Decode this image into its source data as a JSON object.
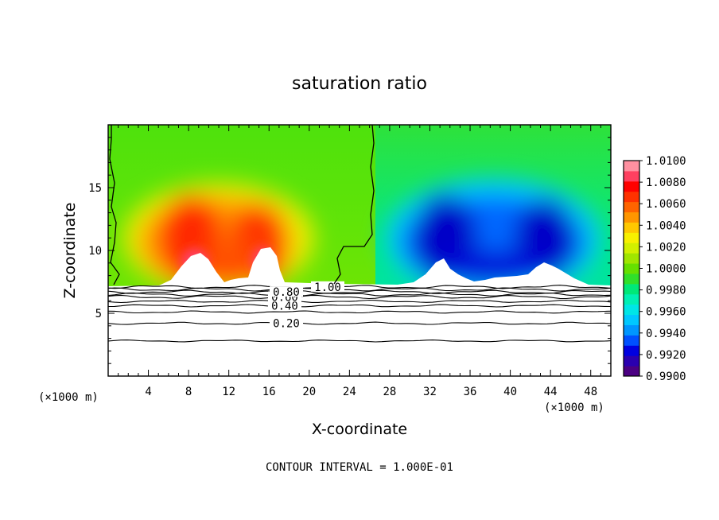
{
  "chart_data": {
    "type": "heatmap",
    "title": "saturation ratio",
    "xlabel": "X-coordinate",
    "ylabel": "Z-coordinate",
    "x_unit": "(×1000 m)",
    "x_unit_right": "(×1000 m)",
    "xlim": [
      0,
      50
    ],
    "ylim": [
      0,
      20
    ],
    "xticks": [
      4,
      8,
      12,
      16,
      20,
      24,
      28,
      32,
      36,
      40,
      44,
      48
    ],
    "xtick_labels": [
      "4",
      "8",
      "12",
      "16",
      "20",
      "24",
      "28",
      "32",
      "36",
      "40",
      "44",
      "48"
    ],
    "yticks": [
      5,
      10,
      15
    ],
    "ytick_labels": [
      "5",
      "10",
      "15"
    ],
    "colorbar": {
      "min": 0.99,
      "max": 1.01,
      "tick_labels": [
        "1.0100",
        "1.0080",
        "1.0060",
        "1.0040",
        "1.0020",
        "1.0000",
        "0.9980",
        "0.9960",
        "0.9940",
        "0.9920",
        "0.9900"
      ],
      "colors": [
        "#4b0082",
        "#2a00b0",
        "#0000e0",
        "#0050ff",
        "#0096ff",
        "#00c8ff",
        "#00e6e6",
        "#00f0b4",
        "#00e878",
        "#30e02a",
        "#66e000",
        "#a0e600",
        "#d2f000",
        "#f8f000",
        "#ffc800",
        "#ff9600",
        "#ff6400",
        "#ff3200",
        "#ff0000",
        "#ff4060",
        "#ff90a0"
      ]
    },
    "warm_cells": [
      {
        "x": 9.5,
        "z": 11.8,
        "value": 1.0068
      },
      {
        "x": 15.0,
        "z": 11.8,
        "value": 1.0052
      },
      {
        "x": 12.0,
        "z": 9.0,
        "value": 1.0045
      },
      {
        "x": 20.0,
        "z": 8.5,
        "value": 1.004
      }
    ],
    "cool_cells": [
      {
        "x": 33.5,
        "z": 10.8,
        "value": 0.9922
      },
      {
        "x": 43.0,
        "z": 10.5,
        "value": 0.9928
      },
      {
        "x": 38.0,
        "z": 9.0,
        "value": 0.9935
      }
    ],
    "contour_levels": [
      {
        "level": 0.2,
        "label": "0.20",
        "z": 4.2
      },
      {
        "level": 0.4,
        "label": "0.40",
        "z": 5.6
      },
      {
        "level": 0.6,
        "label": "0.60",
        "z": 6.3
      },
      {
        "level": 0.8,
        "label": "0.80",
        "z": 6.7
      },
      {
        "level": 1.0,
        "label": "1.00",
        "z": 7.1
      }
    ],
    "extra_contour_levels": [
      {
        "z": 2.8
      },
      {
        "z": 5.1
      },
      {
        "z": 5.95
      },
      {
        "z": 6.5
      },
      {
        "z": 6.9
      }
    ],
    "footer": "CONTOUR INTERVAL = 1.000E-01",
    "grid": false
  }
}
